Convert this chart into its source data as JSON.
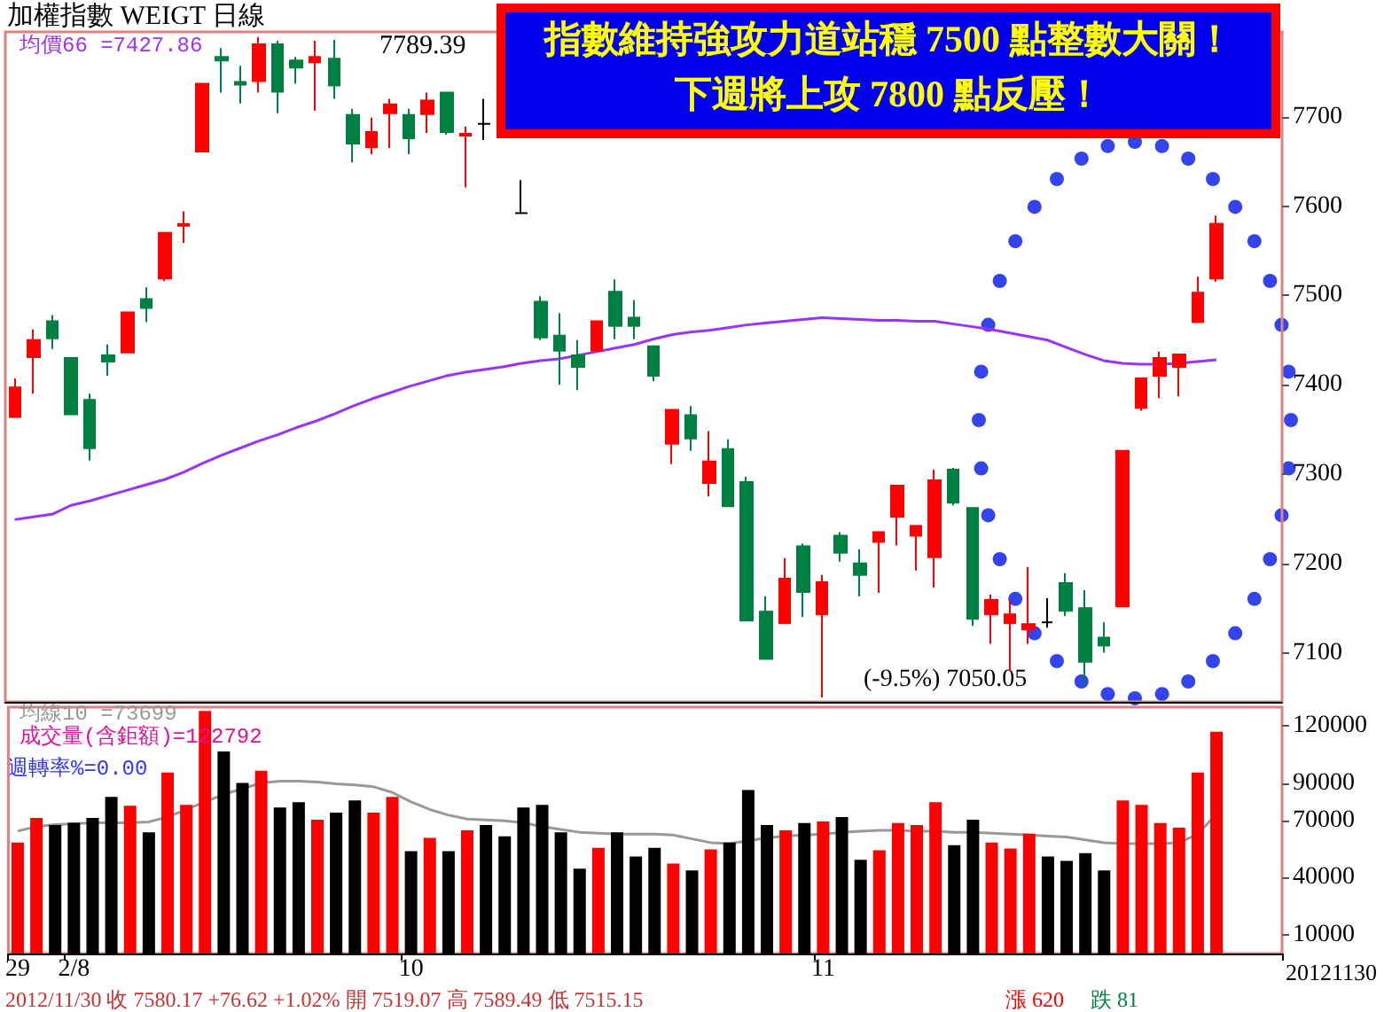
{
  "chart_data": [
    {
      "type": "candlestick",
      "title": "加權指數 WEIGT 日線",
      "categories": [
        null,
        null,
        null,
        null,
        null,
        null,
        null,
        null,
        null,
        null,
        null,
        null,
        null,
        null,
        null,
        null,
        null,
        null,
        null,
        null,
        null,
        null,
        null,
        null,
        null,
        null,
        null,
        null,
        null,
        null,
        null,
        null,
        null,
        null,
        null,
        null,
        null,
        null,
        null,
        null,
        null,
        null,
        null,
        null,
        null,
        null,
        null,
        null,
        null,
        null,
        null,
        null,
        null,
        null,
        null,
        null,
        null,
        null,
        null,
        null,
        null,
        null,
        null,
        null,
        null
      ],
      "series": [
        {
          "type": "line",
          "name": "均價66 =7427.86",
          "color": "#9933ff",
          "values": [
            7249,
            7252,
            7255,
            7265,
            7270,
            7276,
            7282,
            7288,
            7294,
            7302,
            7312,
            7321,
            7329,
            7337,
            7344,
            7352,
            7359,
            7367,
            7376,
            7384,
            7391,
            7398,
            7404,
            7410,
            7414,
            7417,
            7420,
            7424,
            7427,
            7429,
            7433,
            7437,
            7441,
            7445,
            7451,
            7456,
            7459,
            7461,
            7464,
            7467,
            7469,
            7471,
            7473,
            7475,
            7474,
            7473,
            7472,
            7472,
            7471,
            7471,
            7468,
            7465,
            7462,
            7458,
            7454,
            7450,
            7442,
            7434,
            7427,
            7424,
            7423,
            7423,
            7424,
            7426,
            7427.86
          ]
        },
        {
          "ohlc": [
            [
              7364,
              7407,
              7364,
              7397
            ],
            [
              7431,
              7462,
              7390,
              7450
            ],
            [
              7471,
              7478,
              7440,
              7452
            ],
            [
              7430,
              7430,
              7367,
              7367
            ],
            [
              7383,
              7390,
              7315,
              7329
            ],
            [
              7433,
              7445,
              7410,
              7426
            ],
            [
              7436,
              7481,
              7436,
              7481
            ],
            [
              7496,
              7509,
              7470,
              7486
            ],
            [
              7519,
              7570,
              7516,
              7570
            ],
            [
              7578,
              7594,
              7559,
              7580
            ],
            [
              7661,
              7737,
              7661,
              7737
            ],
            [
              7767,
              7777,
              7727,
              7763
            ],
            [
              7739,
              7757,
              7715,
              7736
            ],
            [
              7740,
              7789.39,
              7727,
              7781
            ],
            [
              7781,
              7785,
              7704,
              7728
            ],
            [
              7763,
              7767,
              7737,
              7755
            ],
            [
              7761,
              7785,
              7707,
              7767
            ],
            [
              7765,
              7786,
              7720,
              7735
            ],
            [
              7702,
              7709,
              7649,
              7670
            ],
            [
              7666,
              7699,
              7658,
              7683
            ],
            [
              7704,
              7720,
              7665,
              7714
            ],
            [
              7702,
              7709,
              7658,
              7676
            ],
            [
              7703,
              7727,
              7682,
              7718
            ],
            [
              7727,
              7727,
              7680,
              7683
            ],
            [
              7679,
              7689,
              7621,
              7681
            ],
            [
              7692,
              7720,
              7674,
              7692
            ],
            null,
            [
              7592,
              7629,
              7592,
              7592
            ],
            [
              7493,
              7499,
              7450,
              7453
            ],
            [
              7455,
              7480,
              7400,
              7438
            ],
            [
              7433,
              7450,
              7394,
              7420
            ],
            [
              7438,
              7471,
              7438,
              7471
            ],
            [
              7504,
              7518,
              7451,
              7466
            ],
            [
              7475,
              7495,
              7451,
              7466
            ],
            [
              7443,
              7443,
              7404,
              7410
            ],
            [
              7334,
              7372,
              7311,
              7372
            ],
            [
              7366,
              7376,
              7326,
              7340
            ],
            [
              7290,
              7348,
              7275,
              7314
            ],
            [
              7328,
              7339,
              7264,
              7264
            ],
            [
              7291,
              7297,
              7136,
              7136
            ],
            [
              7146,
              7163,
              7093,
              7093
            ],
            [
              7133,
              7206,
              7133,
              7183
            ],
            [
              7219,
              7222,
              7140,
              7168
            ],
            [
              7143,
              7187,
              7050.05,
              7179
            ],
            [
              7231,
              7235,
              7202,
              7212
            ],
            [
              7200,
              7216,
              7163,
              7187
            ],
            [
              7224,
              7235,
              7167,
              7235
            ],
            [
              7252,
              7287,
              7220,
              7287
            ],
            [
              7231,
              7242,
              7192,
              7242
            ],
            [
              7207,
              7305,
              7173,
              7293
            ],
            [
              7305,
              7307,
              7265,
              7268
            ],
            [
              7262,
              7262,
              7130,
              7138
            ],
            [
              7143,
              7165,
              7110,
              7159
            ],
            [
              7133,
              7159,
              7080,
              7143
            ],
            [
              7126,
              7196,
              7110,
              7132
            ],
            [
              7134,
              7161,
              7128,
              7134
            ],
            [
              7178,
              7189,
              7141,
              7147
            ],
            [
              7150,
              7170,
              7064,
              7090
            ],
            [
              7117,
              7134,
              7100,
              7108
            ],
            [
              7152,
              7326,
              7152,
              7326
            ],
            [
              7374,
              7407,
              7371,
              7407
            ],
            [
              7410,
              7437,
              7385,
              7430
            ],
            [
              7420,
              7434,
              7387,
              7434
            ],
            [
              7470,
              7521,
              7470,
              7503
            ],
            [
              7519.07,
              7589.49,
              7515.15,
              7580.17
            ]
          ],
          "colors": [
            "#ff0000",
            "#ff0000",
            "#008040",
            "#008040",
            "#008040",
            "#008040",
            "#ff0000",
            "#008040",
            "#ff0000",
            "#ff0000",
            "#ff0000",
            "#008040",
            "#008040",
            "#ff0000",
            "#008040",
            "#008040",
            "#ff0000",
            "#008040",
            "#008040",
            "#ff0000",
            "#ff0000",
            "#008040",
            "#ff0000",
            "#008040",
            "#ff0000",
            "#000000",
            "#008040",
            "#000000",
            "#008040",
            "#008040",
            "#008040",
            "#ff0000",
            "#008040",
            "#008040",
            "#008040",
            "#ff0000",
            "#008040",
            "#ff0000",
            "#008040",
            "#008040",
            "#008040",
            "#ff0000",
            "#008040",
            "#ff0000",
            "#008040",
            "#008040",
            "#ff0000",
            "#ff0000",
            "#ff0000",
            "#ff0000",
            "#008040",
            "#008040",
            "#ff0000",
            "#ff0000",
            "#ff0000",
            "#000000",
            "#008040",
            "#008040",
            "#008040",
            "#ff0000",
            "#ff0000",
            "#ff0000",
            "#ff0000",
            "#ff0000",
            "#ff0000"
          ]
        }
      ],
      "ylim": [
        7045,
        7795
      ],
      "yticks": [
        7100,
        7200,
        7300,
        7400,
        7500,
        7600,
        7700
      ],
      "grid": false,
      "legend": "top left",
      "tick_labels": "y",
      "marker": "none",
      "annotations": [
        "7789.39",
        "(-9.5%) 7050.05",
        "指數維持強攻力道站穩 7500 點整數大關！",
        "下週將上攻 7800 點反壓！"
      ]
    },
    {
      "type": "bar",
      "categories": [
        "29",
        null,
        null,
        "2/8",
        null,
        null,
        null,
        null,
        null,
        null,
        null,
        null,
        null,
        null,
        null,
        null,
        null,
        null,
        null,
        null,
        null,
        "10",
        null,
        null,
        null,
        null,
        null,
        null,
        null,
        null,
        null,
        null,
        null,
        null,
        null,
        null,
        null,
        null,
        null,
        null,
        null,
        null,
        null,
        "11",
        null,
        null,
        null,
        null,
        null,
        null,
        null,
        null,
        null,
        null,
        null,
        null,
        null,
        null,
        null,
        null,
        null,
        null,
        null,
        null,
        null
      ],
      "series": [
        {
          "type": "line",
          "name": "均線10 =73699",
          "color": "#999999",
          "values": [
            64600,
            67000,
            68000,
            68500,
            69000,
            69000,
            69000,
            69500,
            72000,
            76000,
            80000,
            84000,
            87000,
            90000,
            91000,
            91000,
            90500,
            89500,
            89000,
            88000,
            85000,
            80000,
            76000,
            73000,
            71000,
            70500,
            70000,
            69000,
            67000,
            65500,
            64000,
            63500,
            63000,
            63000,
            63000,
            62500,
            60500,
            58500,
            58000,
            59500,
            61000,
            62000,
            62500,
            63000,
            64000,
            64500,
            65000,
            65000,
            64500,
            64500,
            64000,
            64000,
            63500,
            63000,
            62500,
            62000,
            61500,
            60000,
            58500,
            58000,
            58000,
            58000,
            58500,
            63000,
            73699
          ]
        },
        {
          "name": "成交量(含鉅額)=122792",
          "values": [
            58600,
            71500,
            67800,
            69000,
            71500,
            82600,
            78000,
            64000,
            95500,
            78400,
            128000,
            106600,
            90000,
            96400,
            77000,
            79800,
            70600,
            74300,
            80800,
            74300,
            82600,
            54000,
            61000,
            54000,
            65000,
            67800,
            61800,
            77000,
            78400,
            64000,
            44800,
            55800,
            64000,
            51200,
            55800,
            47500,
            43800,
            55000,
            58600,
            86300,
            67800,
            65000,
            68800,
            69700,
            72000,
            49400,
            54500,
            68800,
            67800,
            79800,
            57200,
            70600,
            58600,
            55400,
            63200,
            51200,
            48900,
            53000,
            43800,
            80800,
            78400,
            68800,
            66400,
            95500,
            117000
          ],
          "colors": [
            "#ff0000",
            "#ff0000",
            "#000000",
            "#000000",
            "#000000",
            "#000000",
            "#ff0000",
            "#000000",
            "#ff0000",
            "#ff0000",
            "#ff0000",
            "#000000",
            "#000000",
            "#ff0000",
            "#000000",
            "#000000",
            "#ff0000",
            "#000000",
            "#000000",
            "#ff0000",
            "#ff0000",
            "#000000",
            "#ff0000",
            "#000000",
            "#ff0000",
            "#000000",
            "#000000",
            "#000000",
            "#000000",
            "#000000",
            "#000000",
            "#ff0000",
            "#000000",
            "#000000",
            "#000000",
            "#ff0000",
            "#000000",
            "#ff0000",
            "#000000",
            "#000000",
            "#000000",
            "#ff0000",
            "#000000",
            "#ff0000",
            "#000000",
            "#000000",
            "#ff0000",
            "#ff0000",
            "#ff0000",
            "#ff0000",
            "#000000",
            "#000000",
            "#ff0000",
            "#ff0000",
            "#ff0000",
            "#000000",
            "#000000",
            "#000000",
            "#000000",
            "#ff0000",
            "#ff0000",
            "#ff0000",
            "#ff0000",
            "#ff0000",
            "#ff0000"
          ]
        }
      ],
      "ylim": [
        0,
        130000
      ],
      "yticks": [
        10000,
        40000,
        70000,
        90000,
        120000
      ],
      "grid": false,
      "legend": "top left",
      "marker": "none",
      "xlabel": "20121130",
      "annotations": [
        "週轉率%=0.00",
        "2012/11/30 收 7580.17 +76.62 +1.02% 開 7519.07 高 7589.49 低 7515.15",
        "漲 620",
        "跌 81"
      ]
    }
  ]
}
